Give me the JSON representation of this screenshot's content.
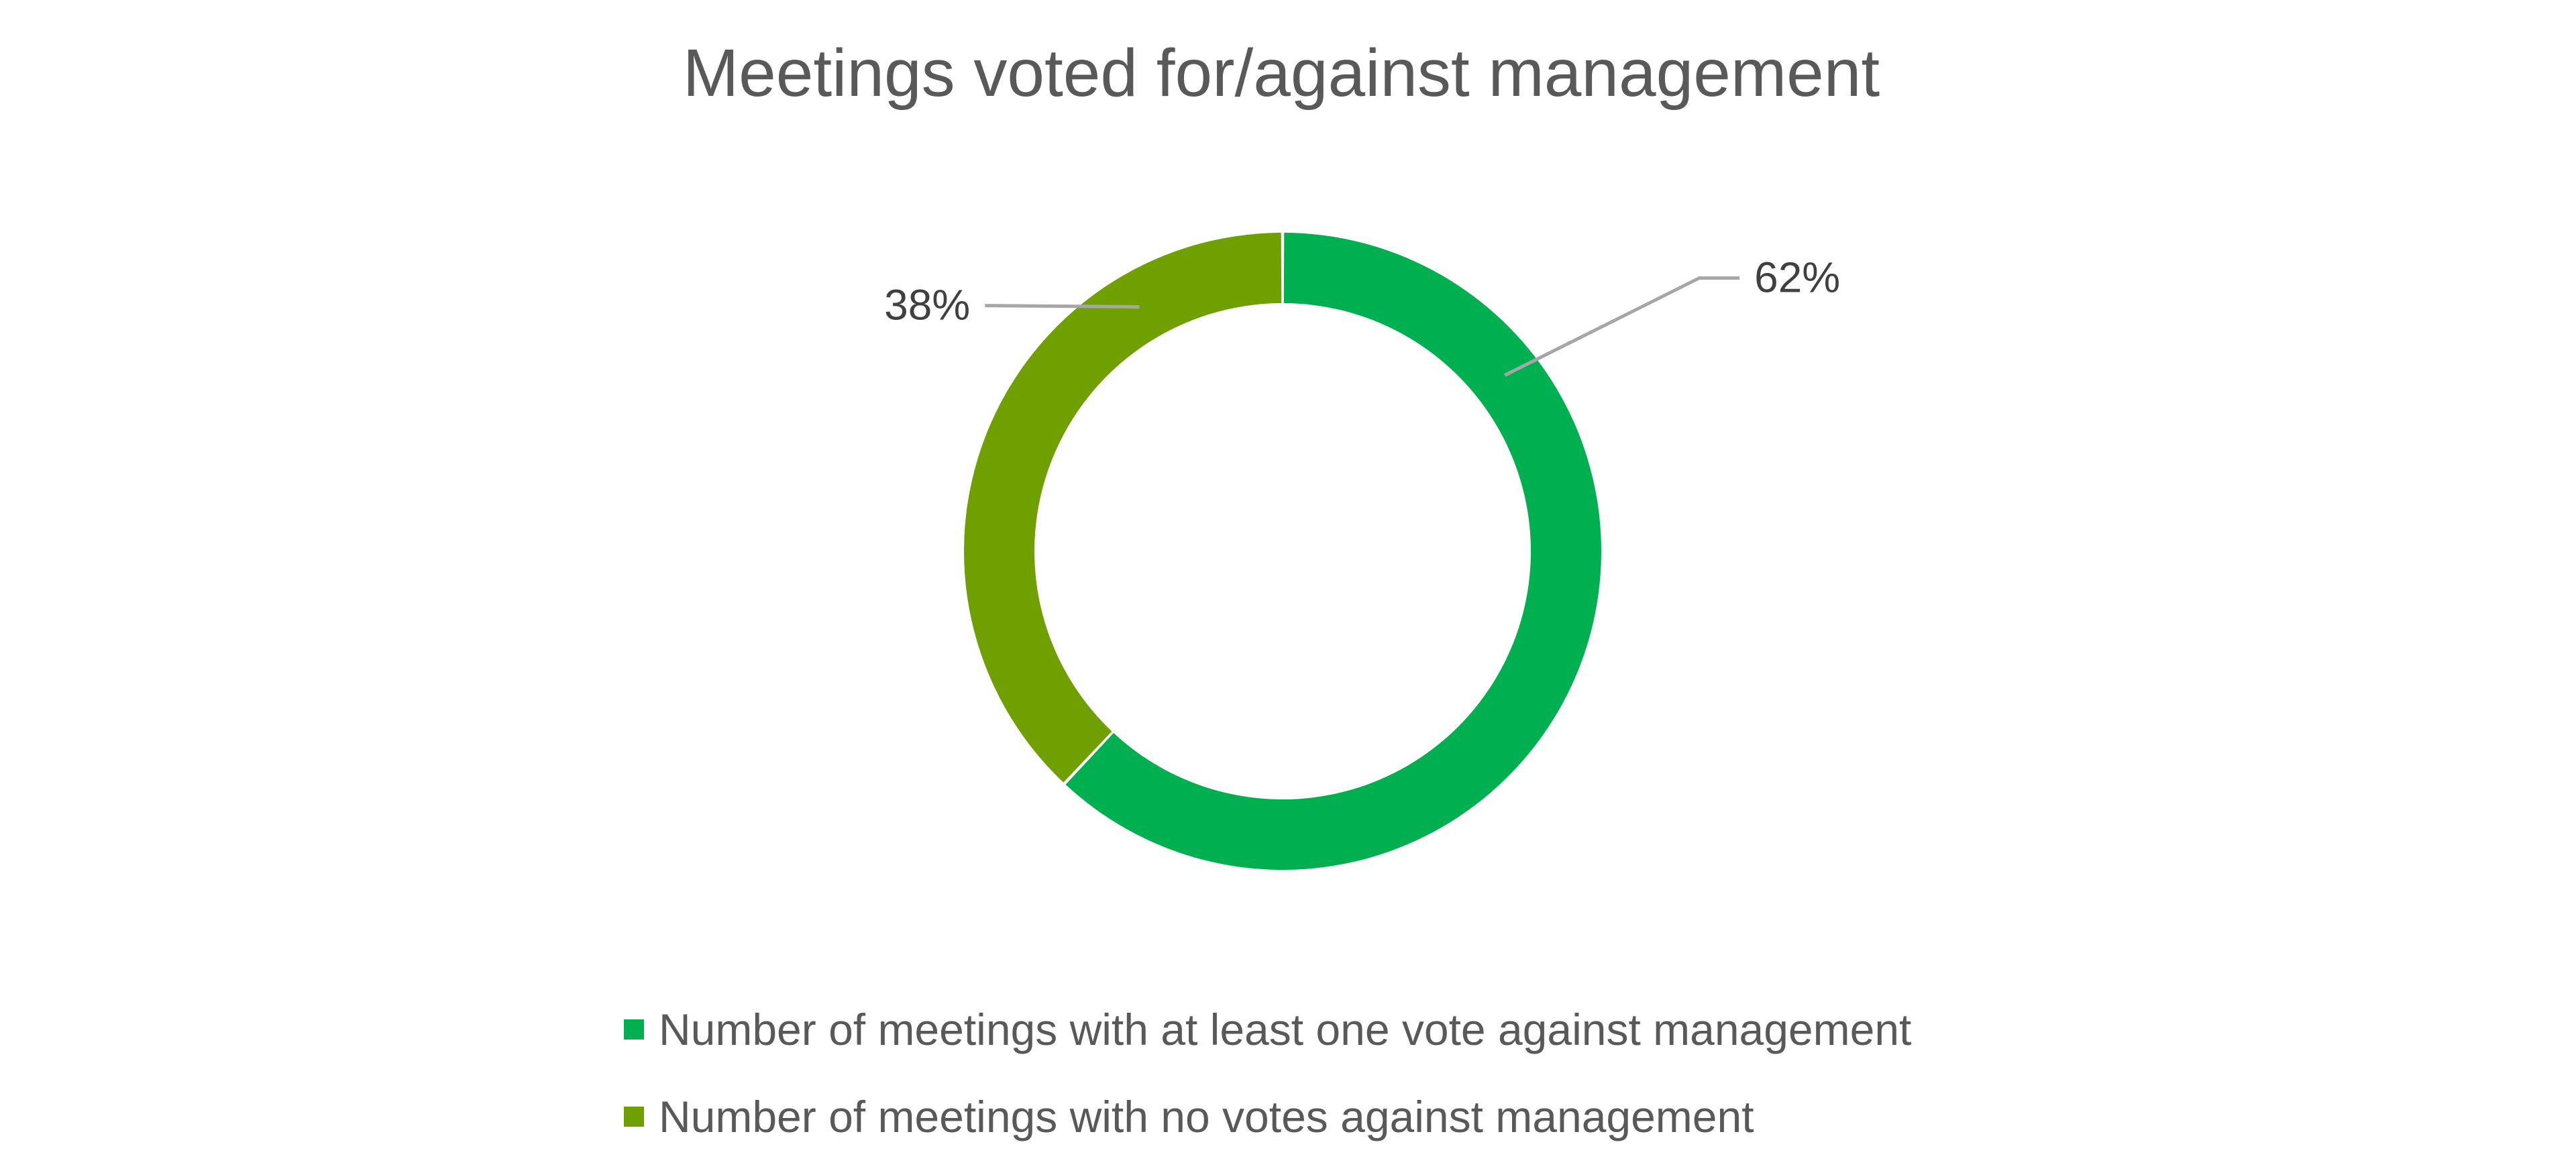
{
  "chart_data": {
    "type": "pie",
    "variant": "donut",
    "title": "Meetings voted for/against management",
    "series": [
      {
        "name": "Number of meetings with at least one vote against management",
        "value": 62,
        "label": "62%",
        "color": "#00b050"
      },
      {
        "name": "Number of meetings with no votes against management",
        "value": 38,
        "label": "38%",
        "color": "#70a000"
      }
    ],
    "unit": "%",
    "legend_position": "bottom"
  }
}
